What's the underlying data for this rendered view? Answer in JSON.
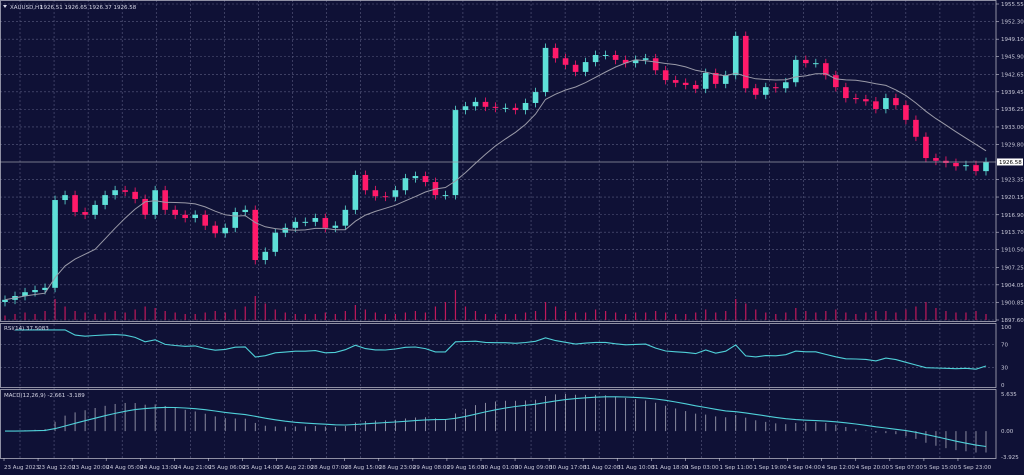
{
  "header": {
    "symbol": "XAUUSD,H1",
    "ohlc": "1926.51 1926.65 1926.37 1926.58"
  },
  "colors": {
    "background": "#0f1136",
    "bull": "#5ee0d8",
    "bear": "#ff1a6a",
    "grid": "#5a5c80",
    "ma": "#9a9aa8",
    "rsi": "#4fd0d8",
    "macd_hist": "#a8a8b8",
    "macd_signal": "#4fd0d8",
    "volume": "#c0185a"
  },
  "chart_data": [
    {
      "type": "candlestick",
      "name": "XAUUSD,H1",
      "ylim": [
        1897.6,
        1955.55
      ],
      "y_ticks": [
        "1955.55",
        "1952.30",
        "1949.10",
        "1945.90",
        "1942.65",
        "1939.45",
        "1936.25",
        "1933.00",
        "1929.80",
        "1923.35",
        "1920.15",
        "1916.90",
        "1913.70",
        "1910.50",
        "1907.25",
        "1904.05",
        "1900.85",
        "1897.60"
      ],
      "current_price": "1926.58",
      "x_ticks": [
        "23 Aug 2023",
        "23 Aug 12:00",
        "23 Aug 20:00",
        "24 Aug 05:00",
        "24 Aug 13:00",
        "24 Aug 21:00",
        "25 Aug 06:00",
        "25 Aug 14:00",
        "25 Aug 22:00",
        "28 Aug 07:00",
        "28 Aug 15:00",
        "28 Aug 23:00",
        "29 Aug 08:00",
        "29 Aug 16:00",
        "30 Aug 01:00",
        "30 Aug 09:00",
        "30 Aug 17:00",
        "31 Aug 02:00",
        "31 Aug 10:00",
        "31 Aug 18:00",
        "1 Sep 03:00",
        "1 Sep 11:00",
        "1 Sep 19:00",
        "4 Sep 04:00",
        "4 Sep 12:00",
        "4 Sep 20:00",
        "5 Sep 07:00",
        "5 Sep 15:00",
        "5 Sep 23:00"
      ],
      "close": [
        1901.3,
        1902.0,
        1902.7,
        1903.1,
        1903.5,
        1919.6,
        1920.5,
        1917.4,
        1916.9,
        1918.7,
        1920.5,
        1921.4,
        1921.1,
        1919.8,
        1916.9,
        1921.4,
        1917.8,
        1916.9,
        1916.3,
        1916.9,
        1914.9,
        1913.5,
        1914.5,
        1917.4,
        1917.8,
        1908.6,
        1910.1,
        1913.6,
        1914.5,
        1915.6,
        1915.6,
        1916.3,
        1914.5,
        1914.9,
        1917.8,
        1924.2,
        1921.4,
        1920.3,
        1920.2,
        1921.4,
        1923.6,
        1924.0,
        1922.9,
        1920.5,
        1920.5,
        1936.1,
        1936.8,
        1937.6,
        1936.7,
        1936.5,
        1936.5,
        1936.1,
        1937.4,
        1939.4,
        1947.5,
        1945.6,
        1944.4,
        1943.1,
        1944.9,
        1946.2,
        1946.2,
        1945.3,
        1944.7,
        1945.3,
        1945.6,
        1943.4,
        1941.6,
        1941.1,
        1940.7,
        1940.0,
        1942.9,
        1940.9,
        1942.5,
        1949.7,
        1940.1,
        1938.9,
        1940.3,
        1940.1,
        1941.2,
        1945.3,
        1944.7,
        1944.7,
        1942.5,
        1940.3,
        1938.3,
        1938.1,
        1937.7,
        1936.3,
        1938.3,
        1937.0,
        1934.3,
        1931.2,
        1927.3,
        1926.8,
        1926.4,
        1925.8,
        1926.0,
        1924.9,
        1926.58
      ],
      "volume": [
        3,
        4,
        5,
        4,
        6,
        14,
        9,
        6,
        5,
        4,
        5,
        6,
        5,
        7,
        9,
        8,
        6,
        5,
        4,
        4,
        5,
        6,
        5,
        7,
        9,
        16,
        11,
        7,
        5,
        4,
        4,
        4,
        5,
        4,
        6,
        10,
        7,
        5,
        4,
        4,
        5,
        6,
        5,
        9,
        12,
        20,
        9,
        6,
        4,
        4,
        4,
        4,
        5,
        6,
        12,
        9,
        6,
        5,
        5,
        7,
        6,
        5,
        4,
        5,
        5,
        6,
        5,
        4,
        4,
        5,
        7,
        5,
        6,
        14,
        11,
        7,
        5,
        4,
        5,
        8,
        6,
        5,
        6,
        7,
        5,
        4,
        5,
        6,
        6,
        5,
        7,
        9,
        12,
        8,
        6,
        5,
        5,
        6,
        4
      ]
    },
    {
      "type": "line",
      "name": "RSI(14)",
      "value_label": "RSI(14) 37.5083",
      "ylim": [
        0,
        100
      ],
      "y_ticks": [
        "100",
        "70",
        "30",
        "0"
      ]
    },
    {
      "type": "bar",
      "name": "MACD(12,26,9)",
      "value_label": "MACD(12,26,9) -2.661 -3.189",
      "ylim": [
        -3.925,
        5.635
      ],
      "y_ticks": [
        "5.635",
        "0.00",
        "-3.925"
      ]
    }
  ]
}
